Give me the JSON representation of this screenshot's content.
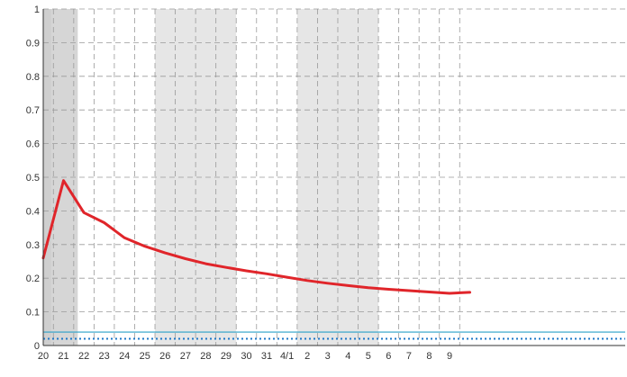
{
  "chart_data": {
    "type": "line",
    "x": [
      "20",
      "21",
      "22",
      "23",
      "24",
      "25",
      "26",
      "27",
      "28",
      "29",
      "30",
      "31",
      "4/1",
      "2",
      "3",
      "4",
      "5",
      "6",
      "7",
      "8",
      "9"
    ],
    "ylim": [
      0,
      1
    ],
    "y_ticks": [
      "0",
      "0.1",
      "0.2",
      "0.3",
      "0.4",
      "0.5",
      "0.6",
      "0.7",
      "0.8",
      "0.9",
      "1"
    ],
    "series": [
      {
        "color": "#e0252a",
        "points": [
          [
            19.8,
            0.26
          ],
          [
            21.0,
            0.49
          ],
          [
            22.0,
            0.395
          ],
          [
            23.0,
            0.365
          ],
          [
            24.0,
            0.32
          ],
          [
            25.0,
            0.295
          ],
          [
            26.0,
            0.275
          ],
          [
            27.0,
            0.258
          ],
          [
            28.0,
            0.243
          ],
          [
            29.0,
            0.232
          ],
          [
            30.0,
            0.222
          ],
          [
            31.0,
            0.213
          ],
          [
            32.0,
            0.203
          ],
          [
            33.0,
            0.193
          ],
          [
            34.0,
            0.185
          ],
          [
            35.0,
            0.178
          ],
          [
            36.0,
            0.172
          ],
          [
            37.0,
            0.167
          ],
          [
            38.0,
            0.163
          ],
          [
            39.0,
            0.159
          ],
          [
            40.0,
            0.155
          ],
          [
            41.0,
            0.158
          ]
        ]
      }
    ],
    "reference_lines": [
      {
        "y": 0.04,
        "color": "#2aa0c8",
        "style": "solid"
      },
      {
        "y": 0.02,
        "color": "#1e78c8",
        "style": "dotted"
      }
    ],
    "shaded_bands": [
      {
        "from": 19.4,
        "to": 20.4,
        "color": "#cfcfcf"
      },
      {
        "from": 20.4,
        "to": 21.7,
        "color": "#d6d6d6"
      },
      {
        "from": 25.5,
        "to": 29.5,
        "color": "#e6e6e6"
      },
      {
        "from": 32.5,
        "to": 36.5,
        "color": "#e6e6e6"
      }
    ],
    "grid": true,
    "legend": false,
    "colors": {
      "line": "#e0252a",
      "grid": "#9a9a9a",
      "axis": "#333333"
    }
  }
}
